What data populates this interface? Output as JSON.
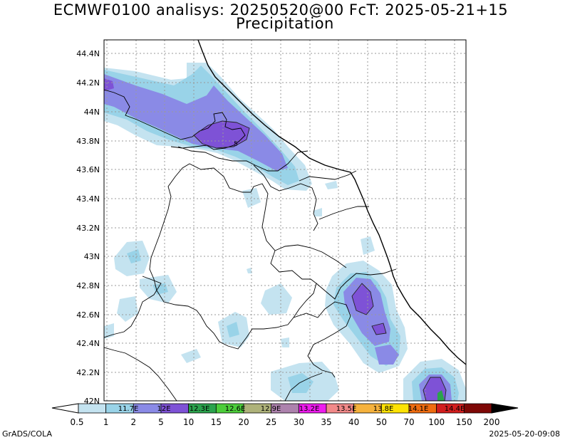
{
  "header": {
    "title": "ECMWF0100 analisys: 20250520@00 FcT: 2025-05-21+15",
    "subtitle": "Precipitation"
  },
  "axes": {
    "lat_labels": [
      "44.4N",
      "44.2N",
      "44N",
      "43.8N",
      "43.6N",
      "43.4N",
      "43.2N",
      "43N",
      "42.8N",
      "42.6N",
      "42.4N",
      "42.2N",
      "42N"
    ],
    "lat_range": [
      42.0,
      44.45
    ],
    "lon_range": [
      11.66,
      14.16
    ],
    "grid": "dotted"
  },
  "map_labels": {
    "center_marker": "5"
  },
  "colorbar": {
    "ticks": [
      "0.5",
      "1",
      "2",
      "5",
      "10",
      "15",
      "20",
      "25",
      "30",
      "35",
      "40",
      "50",
      "70",
      "100",
      "150",
      "200"
    ],
    "box_labels": [
      "11.7E",
      "12E",
      "12.3E",
      "12.6E",
      "12.9E",
      "13.2E",
      "13.5E",
      "13.8E",
      "14.1E",
      "14.4E"
    ],
    "colors": [
      "#c4e3f0",
      "#99d3e8",
      "#8a8ae6",
      "#7e52d6",
      "#2ba34d",
      "#4ccd3a",
      "#aeb27a",
      "#ad82ad",
      "#ee1cee",
      "#f18989",
      "#f5b23d",
      "#fde304",
      "#ef6c10",
      "#d21e1e",
      "#7e0806"
    ]
  },
  "footer": {
    "left": "GrADS/COLA",
    "right": "2025-05-20-09:08"
  }
}
